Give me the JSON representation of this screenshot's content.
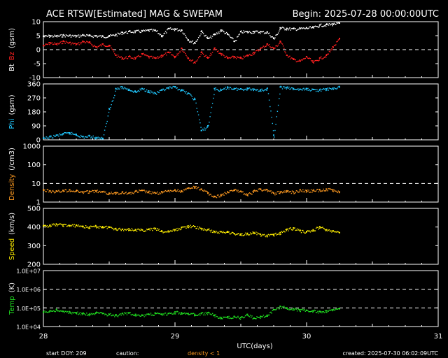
{
  "header": {
    "title": "ACE RTSW[Estimated] MAG & SWEPAM",
    "begin": "Begin: 2025-07-28 00:00:00UTC"
  },
  "footer": {
    "start_doy": "start DOY: 209",
    "caution": "caution:",
    "density_note": "density < 1",
    "created": "created: 2025-07-30 06:02:09UTC"
  },
  "colors": {
    "background": "#000000",
    "bt": "#ffffff",
    "bz": "#ff2020",
    "phi": "#20c8ff",
    "density": "#ff9a20",
    "speed": "#ffee00",
    "temp": "#20e020",
    "axis": "#ffffff"
  },
  "chart_data": [
    {
      "id": "bt-bz",
      "type": "scatter",
      "ylabel_parts": [
        {
          "text": "Bt",
          "color": "#ffffff"
        },
        {
          "text": "Bz",
          "color": "#ff2020"
        },
        {
          "text": "(gsm)",
          "color": "#ffffff"
        }
      ],
      "ylim": [
        -10,
        10
      ],
      "yticks": [
        "10",
        "5",
        "0",
        "-5",
        "-10"
      ],
      "ytick_values": [
        10,
        5,
        0,
        -5,
        -10
      ],
      "dashed_y": [
        0
      ],
      "xlim": [
        28,
        30.26
      ],
      "series": [
        {
          "key": "bt",
          "x": [
            28.0,
            28.05,
            28.1,
            28.15,
            28.2,
            28.25,
            28.3,
            28.35,
            28.4,
            28.45,
            28.5,
            28.55,
            28.6,
            28.65,
            28.7,
            28.75,
            28.8,
            28.85,
            28.9,
            28.95,
            29.0,
            29.05,
            29.1,
            29.15,
            29.2,
            29.25,
            29.3,
            29.35,
            29.4,
            29.45,
            29.5,
            29.55,
            29.6,
            29.65,
            29.7,
            29.75,
            29.8,
            29.85,
            29.9,
            29.95,
            30.0,
            30.05,
            30.1,
            30.15,
            30.2,
            30.25
          ],
          "y": [
            4.8,
            5.0,
            4.9,
            5.2,
            5.1,
            4.9,
            5.3,
            5.0,
            5.0,
            4.8,
            5.0,
            5.4,
            6.2,
            6.5,
            6.6,
            6.7,
            7.0,
            6.9,
            5.0,
            7.5,
            7.4,
            7.0,
            3.5,
            2.5,
            6.5,
            4.0,
            5.5,
            7.0,
            5.5,
            3.0,
            6.5,
            6.4,
            6.5,
            6.4,
            6.3,
            4.0,
            7.8,
            7.6,
            7.5,
            7.6,
            7.8,
            8.0,
            8.8,
            9.0,
            9.2,
            9.5
          ]
        },
        {
          "key": "bz",
          "x": [
            28.0,
            28.05,
            28.1,
            28.15,
            28.2,
            28.25,
            28.3,
            28.35,
            28.4,
            28.45,
            28.5,
            28.55,
            28.6,
            28.65,
            28.7,
            28.75,
            28.8,
            28.85,
            28.9,
            28.95,
            29.0,
            29.05,
            29.1,
            29.15,
            29.2,
            29.25,
            29.3,
            29.35,
            29.4,
            29.45,
            29.5,
            29.55,
            29.6,
            29.65,
            29.7,
            29.75,
            29.8,
            29.85,
            29.9,
            29.95,
            30.0,
            30.05,
            30.1,
            30.15,
            30.2,
            30.25
          ],
          "y": [
            1.5,
            2.5,
            2.0,
            3.0,
            2.5,
            2.0,
            3.0,
            2.5,
            1.0,
            2.0,
            1.5,
            -2.0,
            -3.0,
            -2.5,
            -3.0,
            -1.5,
            -2.5,
            -3.0,
            -2.0,
            -1.0,
            -2.5,
            0.5,
            -3.0,
            -4.5,
            -1.0,
            -3.0,
            0.5,
            -1.5,
            -3.0,
            -2.5,
            -3.0,
            -2.0,
            -1.0,
            0.5,
            2.0,
            0.5,
            3.0,
            -2.0,
            -3.5,
            -4.0,
            -2.5,
            -4.5,
            -3.0,
            -2.0,
            1.0,
            4.0
          ]
        }
      ]
    },
    {
      "id": "phi",
      "type": "scatter",
      "ylabel_parts": [
        {
          "text": "Phi",
          "color": "#20c8ff"
        },
        {
          "text": "(gsm)",
          "color": "#ffffff"
        }
      ],
      "ylim": [
        0,
        360
      ],
      "yticks": [
        "360",
        "270",
        "180",
        "90",
        "0"
      ],
      "ytick_values": [
        360,
        270,
        180,
        90,
        0
      ],
      "dashed_y": [],
      "xlim": [
        28,
        30.26
      ],
      "series": [
        {
          "key": "phi",
          "x": [
            28.0,
            28.05,
            28.1,
            28.15,
            28.2,
            28.25,
            28.3,
            28.35,
            28.4,
            28.45,
            28.5,
            28.55,
            28.6,
            28.65,
            28.7,
            28.75,
            28.8,
            28.85,
            28.9,
            28.95,
            29.0,
            29.05,
            29.1,
            29.15,
            29.2,
            29.25,
            29.3,
            29.35,
            29.4,
            29.45,
            29.5,
            29.55,
            29.6,
            29.65,
            29.7,
            29.75,
            29.8,
            29.85,
            29.9,
            29.95,
            30.0,
            30.05,
            30.1,
            30.15,
            30.2,
            30.25
          ],
          "y": [
            10,
            20,
            30,
            40,
            45,
            35,
            20,
            25,
            15,
            10,
            200,
            330,
            340,
            325,
            310,
            330,
            315,
            300,
            320,
            335,
            340,
            320,
            300,
            260,
            60,
            90,
            330,
            320,
            340,
            330,
            328,
            332,
            326,
            322,
            330,
            30,
            340,
            336,
            330,
            326,
            328,
            324,
            322,
            328,
            332,
            340
          ]
        }
      ]
    },
    {
      "id": "density",
      "type": "scatter",
      "ylabel_parts": [
        {
          "text": "Density",
          "color": "#ff9a20"
        },
        {
          "text": "(/cm3)",
          "color": "#ffffff"
        }
      ],
      "ylim": [
        1,
        1000
      ],
      "log": true,
      "yticks": [
        "1000",
        "100",
        "10",
        "1"
      ],
      "ytick_values": [
        1000,
        100,
        10,
        1
      ],
      "dashed_y": [
        10
      ],
      "xlim": [
        28,
        30.26
      ],
      "series": [
        {
          "key": "density",
          "x": [
            28.0,
            28.05,
            28.1,
            28.15,
            28.2,
            28.25,
            28.3,
            28.35,
            28.4,
            28.45,
            28.5,
            28.55,
            28.6,
            28.65,
            28.7,
            28.75,
            28.8,
            28.85,
            28.9,
            28.95,
            29.0,
            29.05,
            29.1,
            29.15,
            29.2,
            29.25,
            29.3,
            29.35,
            29.4,
            29.45,
            29.5,
            29.55,
            29.6,
            29.65,
            29.7,
            29.75,
            29.8,
            29.85,
            29.9,
            29.95,
            30.0,
            30.05,
            30.1,
            30.15,
            30.2,
            30.25
          ],
          "y": [
            4.5,
            4.0,
            3.8,
            4.2,
            4.5,
            4.0,
            3.5,
            3.8,
            4.0,
            3.5,
            3.0,
            3.2,
            3.5,
            3.0,
            3.8,
            4.2,
            3.5,
            3.0,
            3.5,
            4.0,
            4.5,
            4.0,
            5.5,
            6.5,
            5.0,
            3.0,
            2.0,
            2.5,
            3.5,
            4.5,
            3.8,
            2.5,
            4.0,
            5.0,
            4.5,
            3.0,
            3.5,
            4.0,
            3.5,
            4.5,
            4.0,
            4.2,
            4.5,
            5.0,
            4.5,
            3.5
          ]
        }
      ]
    },
    {
      "id": "speed",
      "type": "scatter",
      "ylabel_parts": [
        {
          "text": "Speed",
          "color": "#ffee00"
        },
        {
          "text": "(km/s)",
          "color": "#ffffff"
        }
      ],
      "ylim": [
        200,
        500
      ],
      "yticks": [
        "500",
        "400",
        "300",
        "200"
      ],
      "ytick_values": [
        500,
        400,
        300,
        200
      ],
      "dashed_y": [],
      "xlim": [
        28,
        30.26
      ],
      "series": [
        {
          "key": "speed",
          "x": [
            28.0,
            28.05,
            28.1,
            28.15,
            28.2,
            28.25,
            28.3,
            28.35,
            28.4,
            28.45,
            28.5,
            28.55,
            28.6,
            28.65,
            28.7,
            28.75,
            28.8,
            28.85,
            28.9,
            28.95,
            29.0,
            29.05,
            29.1,
            29.15,
            29.2,
            29.25,
            29.3,
            29.35,
            29.4,
            29.45,
            29.5,
            29.55,
            29.6,
            29.65,
            29.7,
            29.75,
            29.8,
            29.85,
            29.9,
            29.95,
            30.0,
            30.05,
            30.1,
            30.15,
            30.2,
            30.25
          ],
          "y": [
            405,
            410,
            415,
            412,
            408,
            410,
            404,
            400,
            404,
            402,
            400,
            392,
            388,
            390,
            386,
            384,
            388,
            392,
            376,
            378,
            385,
            398,
            406,
            402,
            392,
            386,
            376,
            374,
            376,
            365,
            362,
            366,
            370,
            360,
            355,
            360,
            370,
            388,
            395,
            380,
            376,
            385,
            402,
            385,
            378,
            370
          ]
        }
      ]
    },
    {
      "id": "temp",
      "type": "scatter",
      "ylabel_parts": [
        {
          "text": "Temp",
          "color": "#20e020"
        },
        {
          "text": "(K)",
          "color": "#ffffff"
        }
      ],
      "ylim": [
        10000,
        10000000
      ],
      "log": true,
      "yticks": [
        "1.0E+07",
        "1.0E+06",
        "1.0E+05",
        "1.0E+04"
      ],
      "ytick_values": [
        10000000,
        1000000,
        100000,
        10000
      ],
      "dashed_y": [
        1000000,
        100000
      ],
      "xlim": [
        28,
        30.26
      ],
      "series": [
        {
          "key": "temp",
          "x": [
            28.0,
            28.05,
            28.1,
            28.15,
            28.2,
            28.25,
            28.3,
            28.35,
            28.4,
            28.45,
            28.5,
            28.55,
            28.6,
            28.65,
            28.7,
            28.75,
            28.8,
            28.85,
            28.9,
            28.95,
            29.0,
            29.05,
            29.1,
            29.15,
            29.2,
            29.25,
            29.3,
            29.35,
            29.4,
            29.45,
            29.5,
            29.55,
            29.6,
            29.65,
            29.7,
            29.75,
            29.8,
            29.85,
            29.9,
            29.95,
            30.0,
            30.05,
            30.1,
            30.15,
            30.2,
            30.25
          ],
          "y": [
            60000,
            70000,
            80000,
            65000,
            60000,
            55000,
            50000,
            45000,
            55000,
            50000,
            45000,
            40000,
            50000,
            55000,
            45000,
            40000,
            45000,
            50000,
            45000,
            50000,
            60000,
            55000,
            50000,
            45000,
            50000,
            55000,
            40000,
            30000,
            32000,
            35000,
            30000,
            45000,
            28000,
            35000,
            40000,
            80000,
            120000,
            100000,
            90000,
            80000,
            75000,
            70000,
            65000,
            70000,
            80000,
            90000
          ]
        }
      ]
    }
  ],
  "x_axis": {
    "label": "UTC(days)",
    "ticks": [
      "28",
      "29",
      "30",
      "31"
    ],
    "tick_values": [
      28,
      29,
      30,
      31
    ],
    "range": [
      28,
      31
    ]
  }
}
